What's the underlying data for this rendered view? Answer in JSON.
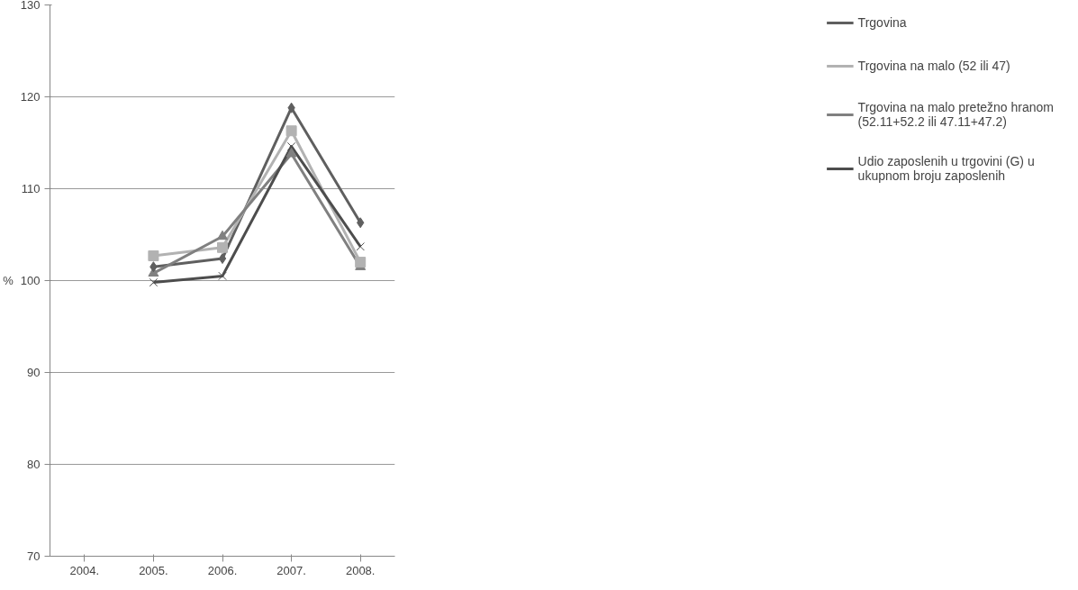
{
  "chart_data": {
    "type": "line",
    "ylabel": "%",
    "categories": [
      "2004.",
      "2005.",
      "2006.",
      "2007.",
      "2008."
    ],
    "ylim": [
      70,
      130
    ],
    "yticks": [
      70,
      80,
      90,
      100,
      110,
      120,
      130
    ],
    "grid": "y",
    "legend": "right",
    "series": [
      {
        "name": "Trgovina",
        "color": "#5f5f5f",
        "marker": "diamond",
        "values": [
          null,
          101.5,
          102.4,
          118.8,
          106.3
        ]
      },
      {
        "name": "Trgovina na malo (52 ili 47)",
        "color": "#b2b2b2",
        "marker": "square",
        "values": [
          null,
          102.7,
          103.6,
          116.3,
          102.0
        ]
      },
      {
        "name": "Trgovina na malo pretežno hranom (52.11+52.2 ili 47.11+47.2)",
        "color": "#808080",
        "marker": "triangle",
        "values": [
          null,
          100.8,
          104.8,
          113.8,
          101.5
        ]
      },
      {
        "name": "Udio zaposlenih u trgovini (G) u ukupnom broju zaposlenih",
        "color": "#4d4d4d",
        "marker": "cross",
        "values": [
          null,
          99.8,
          100.5,
          114.6,
          103.7
        ]
      }
    ]
  }
}
